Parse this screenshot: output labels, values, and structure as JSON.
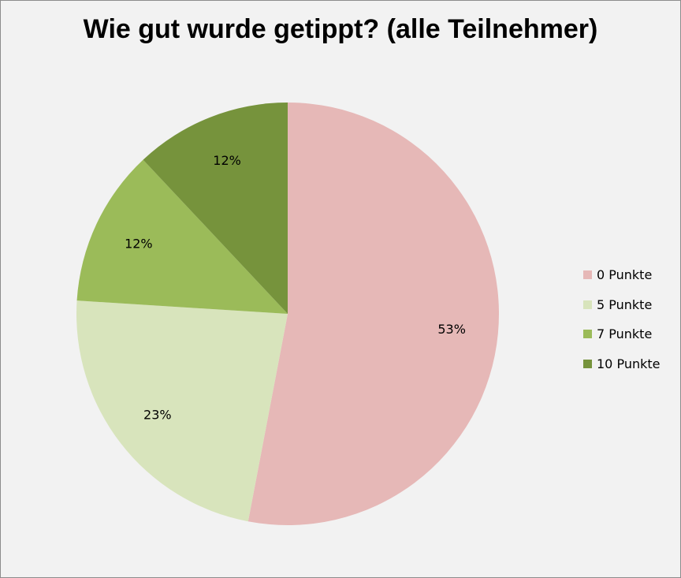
{
  "chart_data": {
    "type": "pie",
    "title": "Wie gut wurde getippt? (alle Teilnehmer)",
    "categories": [
      "0 Punkte",
      "5 Punkte",
      "7 Punkte",
      "10 Punkte"
    ],
    "values": [
      53,
      23,
      12,
      12
    ],
    "data_labels": [
      "53%",
      "23%",
      "12%",
      "12%"
    ],
    "colors": [
      "#e6b8b7",
      "#d8e4bc",
      "#9bbb59",
      "#76933c"
    ],
    "legend_position": "right",
    "start_angle": "12 o'clock",
    "direction": "clockwise"
  }
}
